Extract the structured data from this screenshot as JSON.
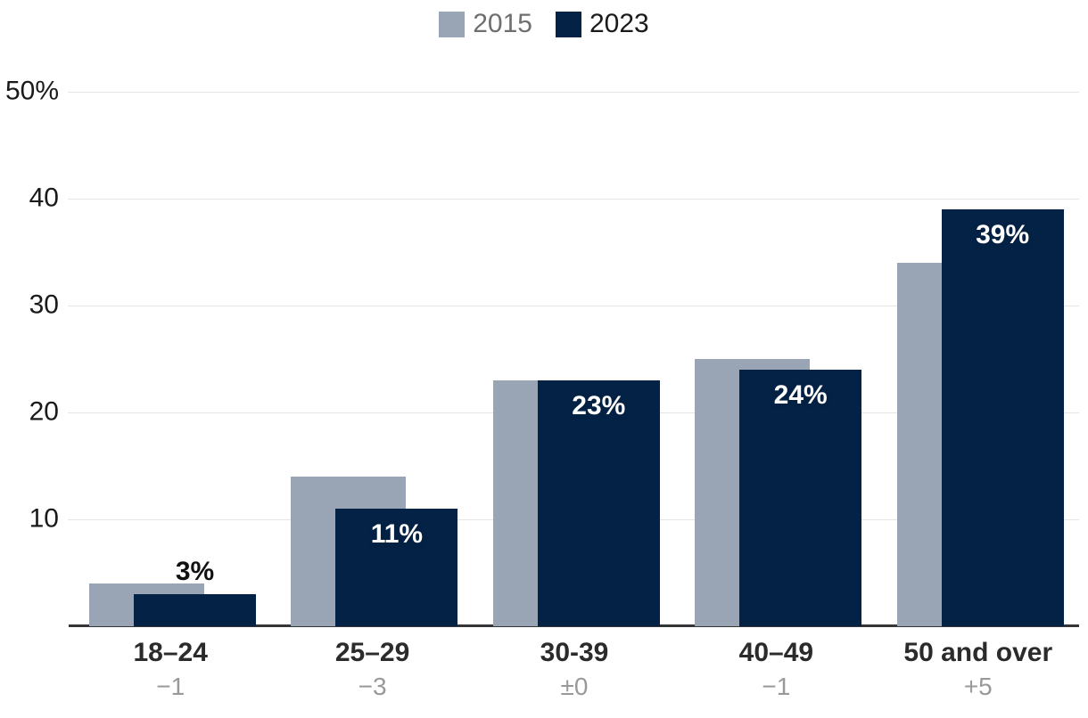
{
  "legend": {
    "items": [
      {
        "label": "2015",
        "swatch_color": "#99a5b4",
        "text_color": "#6f6f6f"
      },
      {
        "label": "2023",
        "swatch_color": "#032245",
        "text_color": "#1a1a1a"
      }
    ]
  },
  "chart_data": {
    "type": "bar",
    "title": "",
    "categories": [
      "18–24",
      "25–29",
      "30-39",
      "40–49",
      "50 and over"
    ],
    "series": [
      {
        "name": "2015",
        "color": "#99a5b4",
        "values": [
          4,
          14,
          23,
          25,
          34
        ]
      },
      {
        "name": "2023",
        "color": "#032245",
        "values": [
          3,
          11,
          23,
          24,
          39
        ]
      }
    ],
    "bar_labels": [
      "3%",
      "11%",
      "23%",
      "24%",
      "39%"
    ],
    "change_labels": [
      "−1",
      "−3",
      "±0",
      "−1",
      "+5"
    ],
    "yticks": [
      {
        "value": 50,
        "label": "50%"
      },
      {
        "value": 40,
        "label": "40"
      },
      {
        "value": 30,
        "label": "30"
      },
      {
        "value": 20,
        "label": "20"
      },
      {
        "value": 10,
        "label": "10"
      }
    ],
    "ylim": [
      0,
      50
    ],
    "xlabel": "",
    "ylabel": "",
    "grid": true,
    "legend_position": "top-center",
    "bar_style": "overlapping",
    "colors": {
      "gridline": "#e5e5e5",
      "axis_line": "#333537",
      "tick_text": "#1a1a1a",
      "category_text": "#2b2b2b",
      "change_text": "#999999",
      "label_inside": "#ffffff",
      "label_outside": "#111111"
    }
  }
}
